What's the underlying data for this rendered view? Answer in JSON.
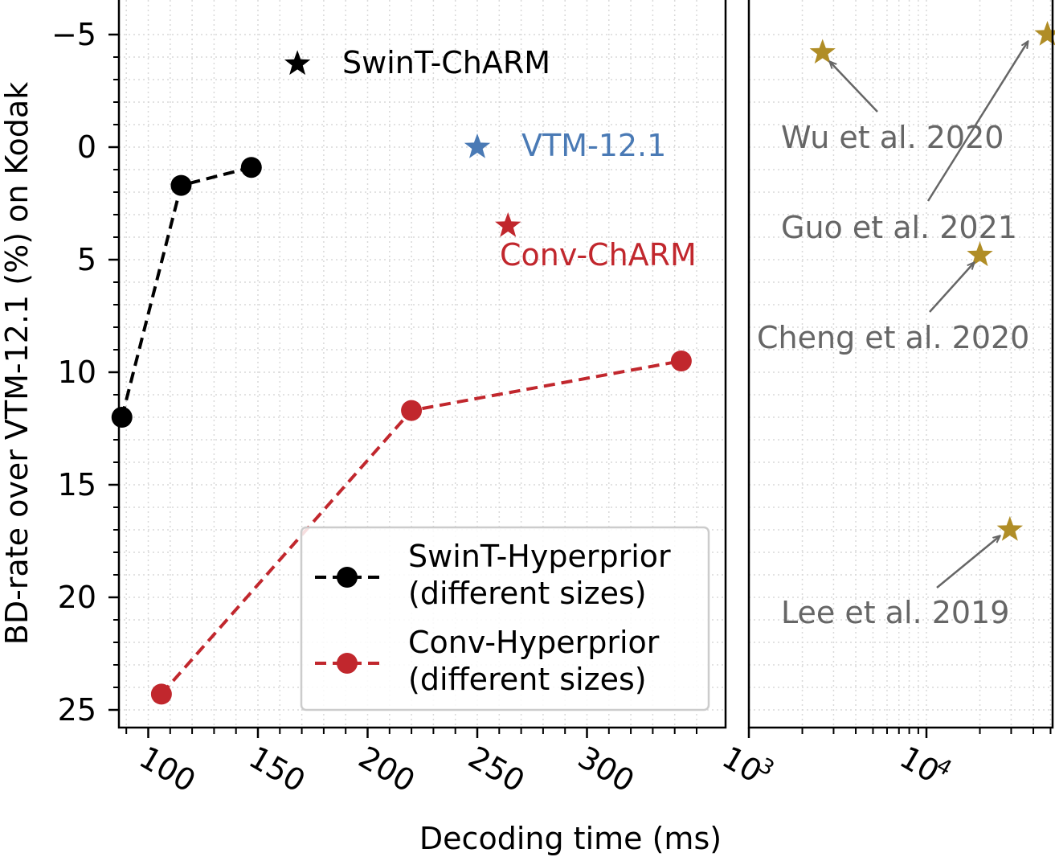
{
  "chart_data": [
    {
      "type": "scatter",
      "xlabel": "Decoding time (ms)",
      "ylabel": "BD-rate over VTM-12.1 (%) on Kodak",
      "xlim": [
        75,
        355
      ],
      "ylim": [
        25.7,
        -5.7
      ],
      "y_inverted": true,
      "x_ticks": [
        100,
        150,
        200,
        250,
        300
      ],
      "x_tick_labels": [
        "100",
        "150",
        "200",
        "250",
        "300"
      ],
      "y_ticks": [
        -5,
        0,
        5,
        10,
        15,
        20,
        25
      ],
      "y_tick_labels": [
        "−5",
        "0",
        "5",
        "10",
        "15",
        "20",
        "25"
      ],
      "grid": "minor dotted",
      "legend": {
        "placement": "lower-right"
      },
      "series": [
        {
          "name": "SwinT-Hyperprior\n(different sizes)",
          "legend_lines": [
            "SwinT-Hyperprior",
            "(different sizes)"
          ],
          "color": "#000000",
          "style": "dashed",
          "marker": "circle",
          "x": [
            88,
            115,
            147
          ],
          "y": [
            12.0,
            1.7,
            0.9
          ]
        },
        {
          "name": "Conv-Hyperprior\n(different sizes)",
          "legend_lines": [
            "Conv-Hyperprior",
            "(different sizes)"
          ],
          "color": "#c1272d",
          "style": "dashed",
          "marker": "circle",
          "x": [
            106,
            220,
            343
          ],
          "y": [
            24.3,
            11.7,
            9.5
          ]
        }
      ],
      "points": [
        {
          "label": "SwinT-ChARM",
          "x": 168,
          "y": -3.7,
          "color": "#000000",
          "marker": "star"
        },
        {
          "label": "VTM-12.1",
          "x": 250,
          "y": 0.0,
          "color": "#4a7ab5",
          "marker": "star"
        },
        {
          "label": "Conv-ChARM",
          "x": 264,
          "y": 3.5,
          "color": "#c1272d",
          "marker": "star"
        }
      ]
    },
    {
      "type": "scatter",
      "x_scale": "log",
      "xlim": [
        1000,
        55000
      ],
      "ylim": [
        25.7,
        -5.7
      ],
      "y_inverted": true,
      "x_ticks": [
        1000,
        10000
      ],
      "x_tick_labels": [
        {
          "base": "10",
          "exp": "3"
        },
        {
          "base": "10",
          "exp": "4"
        }
      ],
      "grid": "minor dotted",
      "points": [
        {
          "label": "Wu et al. 2020",
          "x": 2600,
          "y": -4.2,
          "color": "#b08d26",
          "marker": "star"
        },
        {
          "label": "Guo et al. 2021",
          "x": 48000,
          "y": -5.0,
          "color": "#b08d26",
          "marker": "star"
        },
        {
          "label": "Cheng et al. 2020",
          "x": 20000,
          "y": 4.8,
          "color": "#b08d26",
          "marker": "star"
        },
        {
          "label": "Lee et al. 2019",
          "x": 29500,
          "y": 17.0,
          "color": "#b08d26",
          "marker": "star"
        }
      ]
    }
  ]
}
